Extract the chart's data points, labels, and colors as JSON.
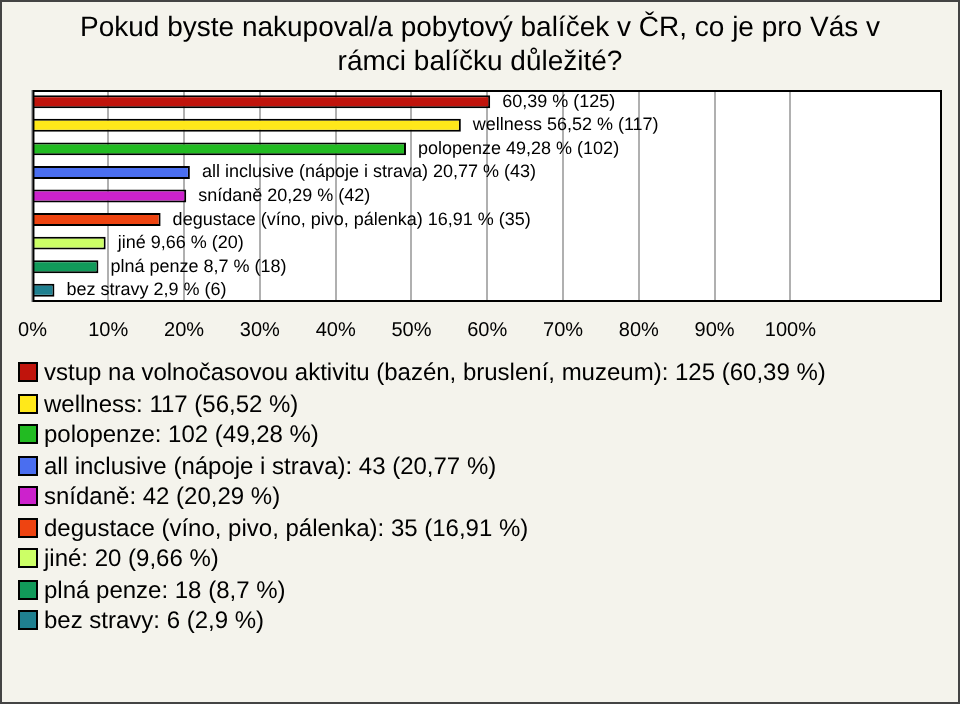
{
  "chart_data": {
    "type": "bar",
    "orientation": "horizontal",
    "title": "Pokud byste nakupoval/a pobytový balíček v ČR, co je pro Vás v rámci balíčku důležité?",
    "categories": [
      null,
      null,
      null,
      null,
      null,
      null,
      null,
      null,
      null
    ],
    "series": [
      {
        "name": "vstup na volnočasovou aktivitu (bazén, bruslení, muzeum): 125 (60,39 %)",
        "color": "#c0140c",
        "values": [
          60.39,
          null,
          null,
          null,
          null,
          null,
          null,
          null,
          null
        ],
        "value_labels": [
          "60,39 % (125)",
          null,
          null,
          null,
          null,
          null,
          null,
          null,
          null
        ]
      },
      {
        "name": "wellness: 117 (56,52 %)",
        "color": "#ffe81a",
        "values": [
          null,
          56.52,
          null,
          null,
          null,
          null,
          null,
          null,
          null
        ],
        "value_labels": [
          null,
          "wellness 56,52 % (117)",
          null,
          null,
          null,
          null,
          null,
          null,
          null
        ]
      },
      {
        "name": "polopenze: 102 (49,28 %)",
        "color": "#22bb22",
        "values": [
          null,
          null,
          49.28,
          null,
          null,
          null,
          null,
          null,
          null
        ],
        "value_labels": [
          null,
          null,
          "polopenze 49,28 % (102)",
          null,
          null,
          null,
          null,
          null,
          null
        ]
      },
      {
        "name": "all inclusive (nápoje i strava): 43 (20,77 %)",
        "color": "#4a6ef0",
        "values": [
          null,
          null,
          null,
          20.77,
          null,
          null,
          null,
          null,
          null
        ],
        "value_labels": [
          null,
          null,
          null,
          "all inclusive (nápoje i strava) 20,77 % (43)",
          null,
          null,
          null,
          null,
          null
        ]
      },
      {
        "name": "snídaně: 42 (20,29 %)",
        "color": "#cc22cc",
        "values": [
          null,
          null,
          null,
          null,
          20.29,
          null,
          null,
          null,
          null
        ],
        "value_labels": [
          null,
          null,
          null,
          null,
          "snídaně 20,29 % (42)",
          null,
          null,
          null,
          null
        ]
      },
      {
        "name": "degustace (víno, pivo, pálenka): 35 (16,91 %)",
        "color": "#ee4411",
        "values": [
          null,
          null,
          null,
          null,
          null,
          16.91,
          null,
          null,
          null
        ],
        "value_labels": [
          null,
          null,
          null,
          null,
          null,
          "degustace (víno, pivo, pálenka) 16,91 % (35)",
          null,
          null,
          null
        ]
      },
      {
        "name": "jiné: 20 (9,66 %)",
        "color": "#ccff66",
        "values": [
          null,
          null,
          null,
          null,
          null,
          null,
          9.66,
          null,
          null
        ],
        "value_labels": [
          null,
          null,
          null,
          null,
          null,
          null,
          "jiné 9,66 % (20)",
          null,
          null
        ]
      },
      {
        "name": "plná penze: 18 (8,7 %)",
        "color": "#119a5a",
        "values": [
          null,
          null,
          null,
          null,
          null,
          null,
          null,
          8.7,
          null
        ],
        "value_labels": [
          null,
          null,
          null,
          null,
          null,
          null,
          null,
          "plná penze 8,7 % (18)",
          null
        ]
      },
      {
        "name": "bez stravy: 6 (2,9 %)",
        "color": "#1f8090",
        "values": [
          null,
          null,
          null,
          null,
          null,
          null,
          null,
          null,
          2.9
        ],
        "value_labels": [
          null,
          null,
          null,
          null,
          null,
          null,
          null,
          null,
          "bez stravy 2,9 % (6)"
        ]
      }
    ],
    "xlim": [
      0,
      120
    ],
    "xticks": [
      {
        "value": 0,
        "label": "0%"
      },
      {
        "value": 10,
        "label": "10%"
      },
      {
        "value": 20,
        "label": "20%"
      },
      {
        "value": 30,
        "label": "30%"
      },
      {
        "value": 40,
        "label": "40%"
      },
      {
        "value": 50,
        "label": "50%"
      },
      {
        "value": 60,
        "label": "60%"
      },
      {
        "value": 70,
        "label": "70%"
      },
      {
        "value": 80,
        "label": "80%"
      },
      {
        "value": 90,
        "label": "90%"
      },
      {
        "value": 100,
        "label": "100%"
      }
    ],
    "grid": "x",
    "tick_labels": "x",
    "legend": "bottom"
  }
}
